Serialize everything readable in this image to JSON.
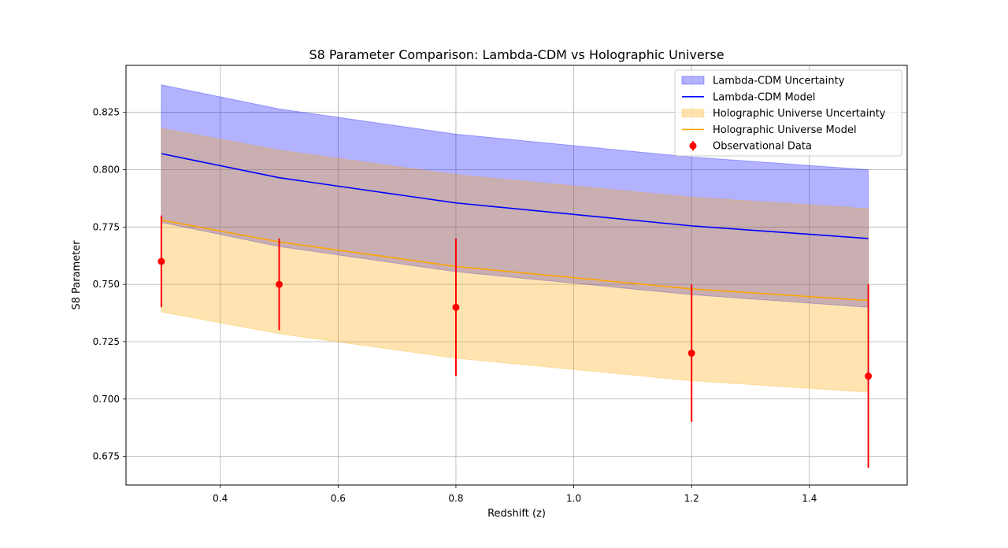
{
  "chart_data": {
    "type": "line",
    "title": "S8 Parameter Comparison: Lambda-CDM vs Holographic Universe",
    "xlabel": "Redshift (z)",
    "ylabel": "S8 Parameter",
    "xlim": [
      0.24,
      1.566
    ],
    "ylim": [
      0.6625,
      0.8455
    ],
    "x_ticks": [
      0.4,
      0.6,
      0.8,
      1.0,
      1.2,
      1.4
    ],
    "x_tick_labels": [
      "0.4",
      "0.6",
      "0.8",
      "1.0",
      "1.2",
      "1.4"
    ],
    "y_ticks": [
      0.675,
      0.7,
      0.725,
      0.75,
      0.775,
      0.8,
      0.825
    ],
    "y_tick_labels": [
      "0.675",
      "0.700",
      "0.725",
      "0.750",
      "0.775",
      "0.800",
      "0.825"
    ],
    "grid": true,
    "legend_position": "top-right",
    "x": [
      0.3,
      0.5,
      0.8,
      1.2,
      1.5
    ],
    "series": [
      {
        "name": "Lambda-CDM Uncertainty",
        "kind": "band",
        "color": "#0000ff",
        "lower": [
          0.777,
          0.7665,
          0.7555,
          0.7455,
          0.74
        ],
        "upper": [
          0.837,
          0.8265,
          0.8155,
          0.8055,
          0.8
        ]
      },
      {
        "name": "Lambda-CDM Model",
        "kind": "line",
        "color": "#0000ff",
        "values": [
          0.807,
          0.7965,
          0.7855,
          0.7755,
          0.77
        ]
      },
      {
        "name": "Holographic Universe Uncertainty",
        "kind": "band",
        "color": "#ffa500",
        "lower": [
          0.738,
          0.7285,
          0.7178,
          0.708,
          0.703
        ],
        "upper": [
          0.818,
          0.8085,
          0.7978,
          0.788,
          0.783
        ]
      },
      {
        "name": "Holographic Universe Model",
        "kind": "line",
        "color": "#ffa500",
        "values": [
          0.778,
          0.7685,
          0.7578,
          0.748,
          0.743
        ]
      },
      {
        "name": "Observational Data",
        "kind": "errorbar",
        "color": "#ff0000",
        "values": [
          0.76,
          0.75,
          0.74,
          0.72,
          0.71
        ],
        "errors": [
          0.02,
          0.02,
          0.03,
          0.03,
          0.04
        ]
      }
    ]
  }
}
